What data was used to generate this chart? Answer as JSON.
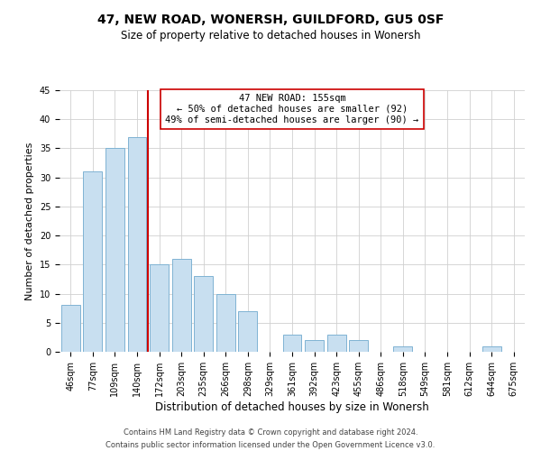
{
  "title": "47, NEW ROAD, WONERSH, GUILDFORD, GU5 0SF",
  "subtitle": "Size of property relative to detached houses in Wonersh",
  "xlabel": "Distribution of detached houses by size in Wonersh",
  "ylabel": "Number of detached properties",
  "bar_labels": [
    "46sqm",
    "77sqm",
    "109sqm",
    "140sqm",
    "172sqm",
    "203sqm",
    "235sqm",
    "266sqm",
    "298sqm",
    "329sqm",
    "361sqm",
    "392sqm",
    "423sqm",
    "455sqm",
    "486sqm",
    "518sqm",
    "549sqm",
    "581sqm",
    "612sqm",
    "644sqm",
    "675sqm"
  ],
  "bar_values": [
    8,
    31,
    35,
    37,
    15,
    16,
    13,
    10,
    7,
    0,
    3,
    2,
    3,
    2,
    0,
    1,
    0,
    0,
    0,
    1,
    0
  ],
  "bar_color": "#c8dff0",
  "bar_edge_color": "#7fb3d3",
  "vline_x": 3.5,
  "vline_color": "#cc0000",
  "annotation_line1": "47 NEW ROAD: 155sqm",
  "annotation_line2": "← 50% of detached houses are smaller (92)",
  "annotation_line3": "49% of semi-detached houses are larger (90) →",
  "annotation_box_color": "#ffffff",
  "annotation_box_edge": "#cc0000",
  "ylim": [
    0,
    45
  ],
  "yticks": [
    0,
    5,
    10,
    15,
    20,
    25,
    30,
    35,
    40,
    45
  ],
  "footer": "Contains HM Land Registry data © Crown copyright and database right 2024.\nContains public sector information licensed under the Open Government Licence v3.0.",
  "bg_color": "#ffffff",
  "grid_color": "#d0d0d0",
  "title_fontsize": 10,
  "subtitle_fontsize": 8.5,
  "ylabel_fontsize": 8,
  "xlabel_fontsize": 8.5,
  "tick_fontsize": 7,
  "annotation_fontsize": 7.5,
  "footer_fontsize": 6
}
